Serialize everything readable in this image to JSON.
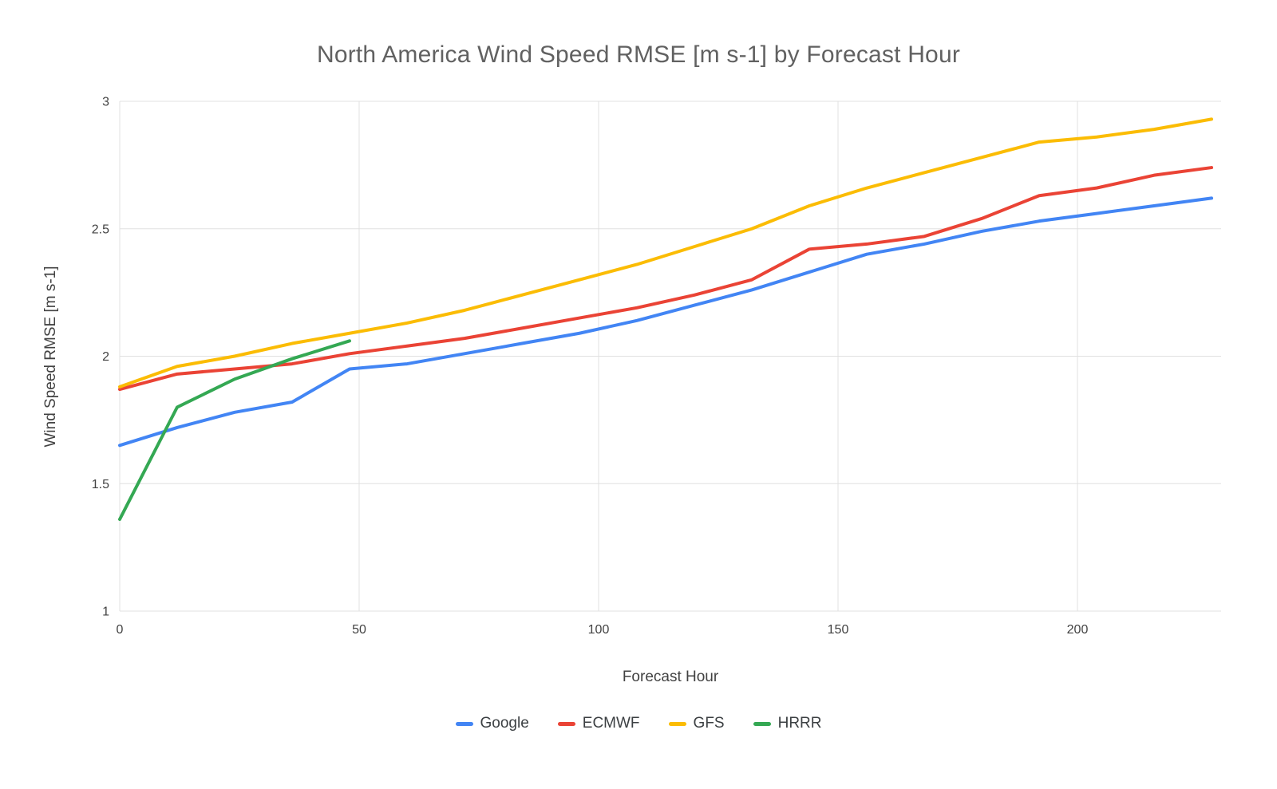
{
  "title": "North America Wind Speed RMSE [m s-1] by Forecast Hour",
  "axes": {
    "x_label": "Forecast Hour",
    "y_label": "Wind Speed RMSE [m s-1]",
    "x_tick_labels": [
      "0",
      "50",
      "100",
      "150",
      "200"
    ],
    "y_tick_labels": [
      "1",
      "1.5",
      "2",
      "2.5",
      "3"
    ]
  },
  "legend": {
    "position": "bottom",
    "entries": [
      "Google",
      "ECMWF",
      "GFS",
      "HRRR"
    ]
  },
  "colors": {
    "google": "#4285F4",
    "ecmwf": "#EA4335",
    "gfs": "#FBBC04",
    "hrrr": "#34A853",
    "grid": "#e0e0e0",
    "tick_text": "#424242",
    "title_text": "#616161"
  },
  "chart_data": {
    "type": "line",
    "title": "North America Wind Speed RMSE [m s-1] by Forecast Hour",
    "xlabel": "Forecast Hour",
    "ylabel": "Wind Speed RMSE [m s-1]",
    "xlim": [
      0,
      230
    ],
    "ylim": [
      1,
      3
    ],
    "x_ticks": [
      0,
      50,
      100,
      150,
      200
    ],
    "y_ticks": [
      1,
      1.5,
      2,
      2.5,
      3
    ],
    "grid": true,
    "legend_position": "bottom",
    "series": [
      {
        "name": "Google",
        "color": "#4285F4",
        "x": [
          0,
          12,
          24,
          36,
          48,
          60,
          72,
          84,
          96,
          108,
          120,
          132,
          144,
          156,
          168,
          180,
          192,
          204,
          216,
          228
        ],
        "values": [
          1.65,
          1.72,
          1.78,
          1.82,
          1.95,
          1.97,
          2.01,
          2.05,
          2.09,
          2.14,
          2.2,
          2.26,
          2.33,
          2.4,
          2.44,
          2.49,
          2.53,
          2.56,
          2.59,
          2.62
        ]
      },
      {
        "name": "ECMWF",
        "color": "#EA4335",
        "x": [
          0,
          12,
          24,
          36,
          48,
          60,
          72,
          84,
          96,
          108,
          120,
          132,
          144,
          156,
          168,
          180,
          192,
          204,
          216,
          228
        ],
        "values": [
          1.87,
          1.93,
          1.95,
          1.97,
          2.01,
          2.04,
          2.07,
          2.11,
          2.15,
          2.19,
          2.24,
          2.3,
          2.42,
          2.44,
          2.47,
          2.54,
          2.63,
          2.66,
          2.71,
          2.74
        ]
      },
      {
        "name": "GFS",
        "color": "#FBBC04",
        "x": [
          0,
          12,
          24,
          36,
          48,
          60,
          72,
          84,
          96,
          108,
          120,
          132,
          144,
          156,
          168,
          180,
          192,
          204,
          216,
          228
        ],
        "values": [
          1.88,
          1.96,
          2.0,
          2.05,
          2.09,
          2.13,
          2.18,
          2.24,
          2.3,
          2.36,
          2.43,
          2.5,
          2.59,
          2.66,
          2.72,
          2.78,
          2.84,
          2.86,
          2.89,
          2.93
        ]
      },
      {
        "name": "HRRR",
        "color": "#34A853",
        "x": [
          0,
          12,
          24,
          36,
          48
        ],
        "values": [
          1.36,
          1.8,
          1.91,
          1.99,
          2.06
        ]
      }
    ]
  }
}
